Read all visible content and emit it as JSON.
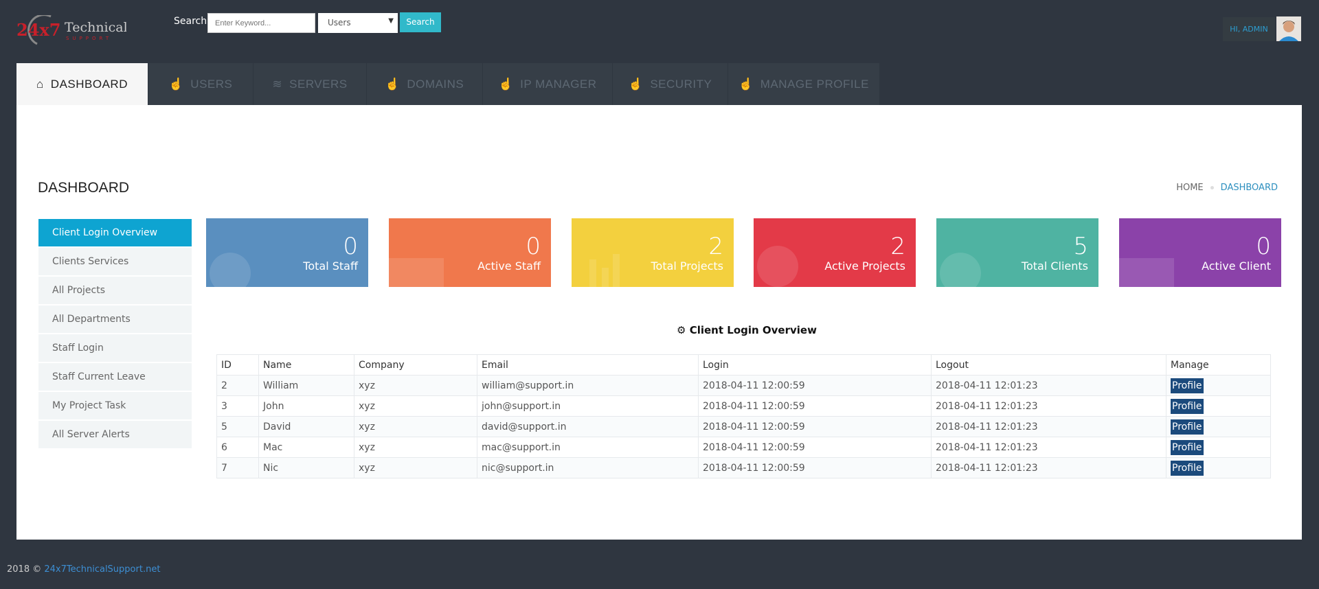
{
  "header": {
    "logo_text": "24x7 Technical Support",
    "search_label": "Search",
    "search_placeholder": "Enter Keyword...",
    "search_select": "Users",
    "search_button": "Search",
    "greeting": "HI, ADMIN"
  },
  "tabs": [
    {
      "label": "DASHBOARD",
      "icon": "home-icon"
    },
    {
      "label": "USERS",
      "icon": "hand-icon"
    },
    {
      "label": "SERVERS",
      "icon": "layers-icon"
    },
    {
      "label": "DOMAINS",
      "icon": "hand-icon"
    },
    {
      "label": "IP MANAGER",
      "icon": "hand-icon"
    },
    {
      "label": "SECURITY",
      "icon": "hand-icon"
    },
    {
      "label": "MANAGE PROFILE",
      "icon": "hand-icon"
    }
  ],
  "page": {
    "title": "DASHBOARD",
    "breadcrumb": [
      "HOME",
      "DASHBOARD"
    ]
  },
  "sidebar": [
    "Client Login Overview",
    "Clients Services",
    "All Projects",
    "All Departments",
    "Staff Login",
    "Staff Current Leave",
    "My Project Task",
    "All Server Alerts"
  ],
  "cards": [
    {
      "value": "0",
      "label": "Total Staff",
      "color": "#5a8fbf"
    },
    {
      "value": "0",
      "label": "Active Staff",
      "color": "#f0784c"
    },
    {
      "value": "2",
      "label": "Total Projects",
      "color": "#f3d03e"
    },
    {
      "value": "2",
      "label": "Active Projects",
      "color": "#e33a48"
    },
    {
      "value": "5",
      "label": "Total Clients",
      "color": "#4fb3a2"
    },
    {
      "value": "0",
      "label": "Active Client",
      "color": "#8b42a9"
    }
  ],
  "section_title": "Client Login Overview",
  "table": {
    "headers": [
      "ID",
      "Name",
      "Company",
      "Email",
      "Login",
      "Logout",
      "Manage"
    ],
    "rows": [
      [
        "2",
        "William",
        "xyz",
        "william@support.in",
        "2018-04-11 12:00:59",
        "2018-04-11 12:01:23",
        "Profile"
      ],
      [
        "3",
        "John",
        "xyz",
        "john@support.in",
        "2018-04-11 12:00:59",
        "2018-04-11 12:01:23",
        "Profile"
      ],
      [
        "5",
        "David",
        "xyz",
        "david@support.in",
        "2018-04-11 12:00:59",
        "2018-04-11 12:01:23",
        "Profile"
      ],
      [
        "6",
        "Mac",
        "xyz",
        "mac@support.in",
        "2018-04-11 12:00:59",
        "2018-04-11 12:01:23",
        "Profile"
      ],
      [
        "7",
        "Nic",
        "xyz",
        "nic@support.in",
        "2018-04-11 12:00:59",
        "2018-04-11 12:01:23",
        "Profile"
      ]
    ]
  },
  "footer": {
    "text": "2018 © ",
    "link": "24x7TechnicalSupport.net"
  }
}
